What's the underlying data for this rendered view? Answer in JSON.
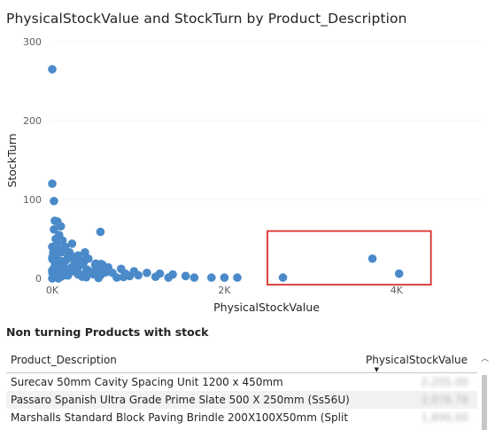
{
  "chart_data": {
    "type": "scatter",
    "title": "PhysicalStockValue and StockTurn by Product_Description",
    "xlabel": "PhysicalStockValue",
    "ylabel": "StockTurn",
    "xlim": [
      0,
      5000
    ],
    "ylim": [
      0,
      300
    ],
    "xticks": [
      "0K",
      "2K",
      "4K"
    ],
    "yticks": [
      "0",
      "100",
      "200",
      "300"
    ],
    "color": "#4a8ac9",
    "points": [
      {
        "x": 0,
        "y": 265
      },
      {
        "x": 0,
        "y": 120
      },
      {
        "x": 20,
        "y": 98
      },
      {
        "x": 30,
        "y": 73
      },
      {
        "x": 60,
        "y": 72
      },
      {
        "x": 100,
        "y": 66
      },
      {
        "x": 20,
        "y": 62
      },
      {
        "x": 80,
        "y": 55
      },
      {
        "x": 560,
        "y": 59
      },
      {
        "x": 40,
        "y": 50
      },
      {
        "x": 120,
        "y": 48
      },
      {
        "x": 60,
        "y": 45
      },
      {
        "x": 230,
        "y": 44
      },
      {
        "x": 150,
        "y": 40
      },
      {
        "x": 380,
        "y": 33
      },
      {
        "x": 90,
        "y": 36
      },
      {
        "x": 200,
        "y": 33
      },
      {
        "x": 300,
        "y": 29
      },
      {
        "x": 40,
        "y": 30
      },
      {
        "x": 420,
        "y": 25
      },
      {
        "x": 180,
        "y": 26
      },
      {
        "x": 260,
        "y": 22
      },
      {
        "x": 110,
        "y": 20
      },
      {
        "x": 340,
        "y": 18
      },
      {
        "x": 500,
        "y": 17
      },
      {
        "x": 50,
        "y": 15
      },
      {
        "x": 650,
        "y": 14
      },
      {
        "x": 220,
        "y": 13
      },
      {
        "x": 800,
        "y": 12
      },
      {
        "x": 420,
        "y": 10
      },
      {
        "x": 140,
        "y": 8
      },
      {
        "x": 950,
        "y": 9
      },
      {
        "x": 700,
        "y": 7
      },
      {
        "x": 1100,
        "y": 7
      },
      {
        "x": 1250,
        "y": 6
      },
      {
        "x": 300,
        "y": 5
      },
      {
        "x": 1400,
        "y": 5
      },
      {
        "x": 560,
        "y": 4
      },
      {
        "x": 900,
        "y": 3
      },
      {
        "x": 1550,
        "y": 3
      },
      {
        "x": 100,
        "y": 2
      },
      {
        "x": 1200,
        "y": 2
      },
      {
        "x": 750,
        "y": 1
      },
      {
        "x": 1650,
        "y": 1
      },
      {
        "x": 1850,
        "y": 1
      },
      {
        "x": 2000,
        "y": 1
      },
      {
        "x": 2150,
        "y": 1
      },
      {
        "x": 2680,
        "y": 1
      },
      {
        "x": 3720,
        "y": 25
      },
      {
        "x": 4030,
        "y": 6
      },
      {
        "x": 0,
        "y": 40
      },
      {
        "x": 0,
        "y": 25
      },
      {
        "x": 0,
        "y": 10
      },
      {
        "x": 30,
        "y": 4
      },
      {
        "x": 350,
        "y": 2
      },
      {
        "x": 470,
        "y": 6
      },
      {
        "x": 1000,
        "y": 4
      },
      {
        "x": 1350,
        "y": 1
      },
      {
        "x": 600,
        "y": 10
      },
      {
        "x": 850,
        "y": 6
      },
      {
        "x": 160,
        "y": 12
      },
      {
        "x": 250,
        "y": 9
      }
    ],
    "highlight": {
      "x_range": [
        2500,
        4400
      ],
      "y_range": [
        -8,
        60
      ],
      "color": "#d9302c"
    }
  },
  "table": {
    "title": "Non turning Products with stock",
    "columns": [
      "Product_Description",
      "PhysicalStockValue"
    ],
    "rows": [
      {
        "desc": "Surecav 50mm Cavity Spacing Unit 1200 x 450mm",
        "value": "2,205.00"
      },
      {
        "desc": "Passaro Spanish Ultra Grade Prime Slate 500 X 250mm (Ss56U)",
        "value": "2,076.78"
      },
      {
        "desc": "Marshalls Standard Block Paving Brindle 200X100X50mm (Split",
        "value": "1,890.00"
      }
    ]
  }
}
